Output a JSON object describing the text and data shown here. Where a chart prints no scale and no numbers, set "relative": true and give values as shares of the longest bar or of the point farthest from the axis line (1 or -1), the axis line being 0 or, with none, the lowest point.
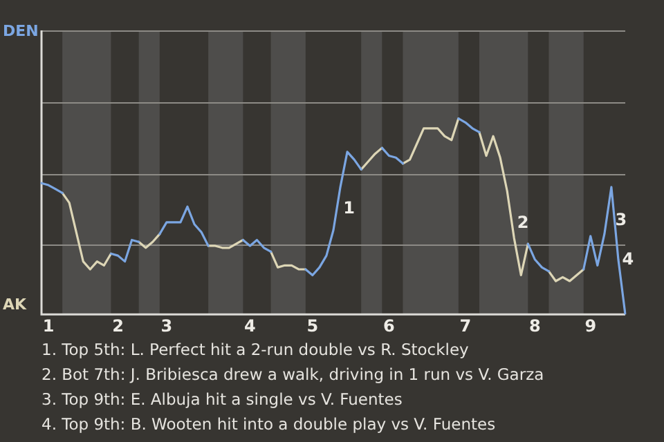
{
  "chart_data": {
    "type": "line",
    "relative": true,
    "categories": [
      null,
      "1",
      null,
      null,
      null,
      null,
      null,
      null,
      null,
      null,
      null,
      "2",
      null,
      null,
      null,
      null,
      null,
      null,
      "3",
      null,
      null,
      null,
      null,
      null,
      null,
      null,
      null,
      null,
      null,
      null,
      "4",
      null,
      null,
      null,
      null,
      null,
      null,
      null,
      null,
      "5",
      null,
      null,
      null,
      null,
      null,
      null,
      null,
      null,
      null,
      null,
      "6",
      null,
      null,
      null,
      null,
      null,
      null,
      null,
      null,
      null,
      null,
      "7",
      null,
      null,
      null,
      null,
      null,
      null,
      null,
      null,
      null,
      "8",
      null,
      null,
      null,
      null,
      null,
      null,
      null,
      "9",
      null,
      null,
      null,
      null,
      null
    ],
    "series": [
      {
        "color": "#7ba6e2",
        "values": [
          0.67,
          0.66,
          0.64,
          0.62,
          null,
          null,
          null,
          null,
          null,
          null,
          0.31,
          0.3,
          0.27,
          0.38,
          0.37,
          null,
          null,
          0.41,
          0.47,
          0.47,
          0.47,
          0.55,
          0.46,
          0.42,
          0.35,
          null,
          null,
          null,
          null,
          0.38,
          0.35,
          0.38,
          0.34,
          0.32,
          null,
          null,
          null,
          null,
          0.23,
          0.2,
          0.24,
          0.3,
          0.43,
          0.65,
          0.83,
          0.79,
          0.74,
          null,
          null,
          0.85,
          0.81,
          0.8,
          0.77,
          null,
          null,
          null,
          null,
          null,
          null,
          null,
          1,
          0.98,
          0.95,
          0.93,
          null,
          null,
          null,
          null,
          null,
          null,
          0.36,
          0.28,
          0.24,
          0.22,
          null,
          null,
          null,
          null,
          0.23,
          0.4,
          0.25,
          0.41,
          0.65,
          0.28,
          0
        ]
      },
      {
        "color": "#ddd6b6",
        "values": [
          null,
          null,
          null,
          0.62,
          0.57,
          0.42,
          0.27,
          0.23,
          0.27,
          0.25,
          0.31,
          null,
          null,
          null,
          0.37,
          0.34,
          0.37,
          0.41,
          null,
          null,
          null,
          null,
          null,
          null,
          0.35,
          0.35,
          0.34,
          0.34,
          0.36,
          0.38,
          null,
          null,
          null,
          0.32,
          0.24,
          0.25,
          0.25,
          0.23,
          0.23,
          null,
          null,
          null,
          null,
          null,
          null,
          null,
          0.74,
          0.78,
          0.82,
          0.85,
          null,
          null,
          0.77,
          0.79,
          0.87,
          0.95,
          0.95,
          0.95,
          0.91,
          0.89,
          1,
          null,
          null,
          0.93,
          0.81,
          0.91,
          0.8,
          0.63,
          0.39,
          0.2,
          0.36,
          null,
          null,
          0.22,
          0.17,
          0.19,
          0.17,
          0.2,
          0.23,
          null,
          null,
          null,
          null,
          null,
          null
        ]
      }
    ],
    "ref_lines": [
      {
        "axis": "y",
        "value": 0.36,
        "color": "#8d8b86"
      },
      {
        "axis": "y",
        "value": 0.72,
        "color": "#8d8b86"
      },
      {
        "axis": "y",
        "value": 1.08,
        "color": "#8d8b86"
      },
      {
        "axis": "y",
        "value": 1.45,
        "color": "#8d8b86"
      }
    ],
    "annotations": [
      "DEN",
      "AK",
      "1",
      "2",
      "3",
      "4",
      "1. Top 5th: L. Perfect hit a 2-run double vs R. Stockley",
      "2. Bot 7th: J. Bribiesca drew a walk, driving in 1 run vs V. Garza",
      "3. Top 9th: E. Albuja hit a single vs V. Fuentes",
      "4. Top 9th: B. Wooten hit into a double play vs V. Fuentes"
    ]
  }
}
